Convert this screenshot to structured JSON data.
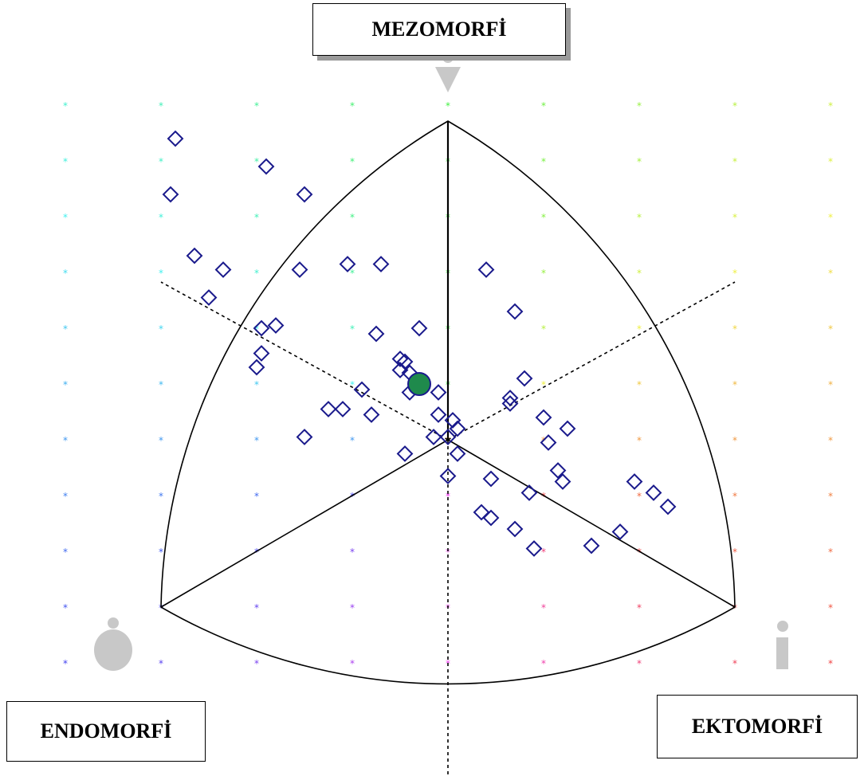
{
  "chart_data": {
    "type": "scatter",
    "title": "",
    "axis_labels": {
      "top": "MEZOMORFİ",
      "bottom_left": "ENDOMORFİ",
      "bottom_right": "EKTOMORFİ"
    },
    "x_range": [
      -8,
      8
    ],
    "y_range": [
      -10,
      16
    ],
    "grid_star_x": [
      -8,
      -6,
      -4,
      -2,
      0,
      2,
      4,
      6,
      8
    ],
    "grid_star_y": [
      -10,
      -8,
      -6,
      -4,
      -2,
      0,
      2,
      4,
      6,
      8,
      10,
      12,
      14,
      16
    ],
    "series": [
      {
        "marker": "diamond-open",
        "color": "#1a1a8c",
        "points": [
          [
            -5.7,
            10.8
          ],
          [
            -5.8,
            8.8
          ],
          [
            -3.8,
            9.8
          ],
          [
            -3,
            8.8
          ],
          [
            -5.3,
            6.6
          ],
          [
            -4.7,
            6.1
          ],
          [
            -5,
            5.1
          ],
          [
            -3.9,
            4
          ],
          [
            -3.6,
            4.1
          ],
          [
            -3.9,
            3.1
          ],
          [
            -4,
            2.6
          ],
          [
            -3.1,
            6.1
          ],
          [
            -2.1,
            6.3
          ],
          [
            -1.4,
            6.3
          ],
          [
            -1.5,
            3.8
          ],
          [
            -0.9,
            2.8
          ],
          [
            -0.6,
            4
          ],
          [
            -1.8,
            1.8
          ],
          [
            -2.5,
            1.1
          ],
          [
            -2.2,
            1.1
          ],
          [
            -1.6,
            0.9
          ],
          [
            -3,
            0.1
          ],
          [
            -0.8,
            1.7
          ],
          [
            -0.8,
            2.4
          ],
          [
            -0.6,
            2.1
          ],
          [
            -1,
            2.9
          ],
          [
            -1,
            2.5
          ],
          [
            -0.2,
            1.7
          ],
          [
            -0.2,
            0.9
          ],
          [
            0.1,
            0.7
          ],
          [
            0.2,
            0.4
          ],
          [
            -0.3,
            0.1
          ],
          [
            0,
            0.1
          ],
          [
            0.2,
            -0.5
          ],
          [
            -0.9,
            -0.5
          ],
          [
            0,
            -1.3
          ],
          [
            0.9,
            -1.4
          ],
          [
            0.7,
            -2.6
          ],
          [
            0.9,
            -2.8
          ],
          [
            1.4,
            -3.2
          ],
          [
            1.7,
            -1.9
          ],
          [
            2.4,
            -1.5
          ],
          [
            3.9,
            -1.5
          ],
          [
            4.3,
            -1.9
          ],
          [
            4.6,
            -2.4
          ],
          [
            3.6,
            -3.3
          ],
          [
            1.8,
            -3.9
          ],
          [
            3,
            -3.8
          ],
          [
            2.3,
            -1.1
          ],
          [
            2.1,
            -0.1
          ],
          [
            2,
            0.8
          ],
          [
            2.5,
            0.4
          ],
          [
            1.6,
            2.2
          ],
          [
            1.3,
            1.3
          ],
          [
            1.3,
            1.5
          ],
          [
            0.8,
            6.1
          ],
          [
            1.4,
            4.6
          ]
        ]
      },
      {
        "name": "",
        "marker": "circle",
        "color": "#1f8a4c",
        "points": [
          [
            -0.6,
            2
          ]
        ]
      }
    ],
    "grid": false,
    "legend": "none"
  }
}
